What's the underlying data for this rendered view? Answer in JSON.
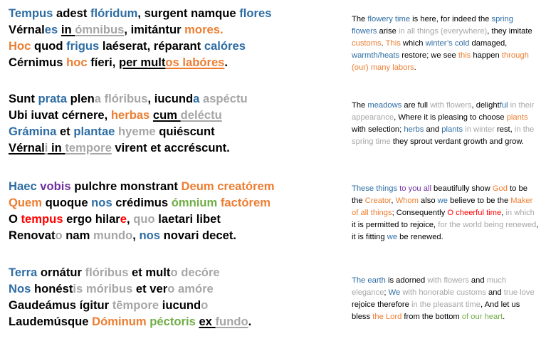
{
  "colors": {
    "blue": "#2E6DA4",
    "gray": "#A6A6A6",
    "orange": "#ED7D31",
    "purple": "#7030A0",
    "red": "#FF0000",
    "green": "#70AD47",
    "light_green": "#92D050",
    "black": "#000000"
  },
  "stanzas": [
    {
      "latin": [
        [
          {
            "t": "Tempus",
            "c": "blue"
          },
          {
            "t": " adest ",
            "c": "black"
          },
          {
            "t": "flóridum",
            "c": "blue"
          },
          {
            "t": ", surgent namque ",
            "c": "black"
          },
          {
            "t": "flores",
            "c": "blue"
          }
        ],
        [
          {
            "t": "Vérnal",
            "c": "black"
          },
          {
            "t": "es",
            "c": "blue"
          },
          {
            "t": " ",
            "c": "black"
          },
          {
            "t": "in",
            "c": "black",
            "u": true
          },
          {
            "t": " ",
            "c": "black",
            "u": true
          },
          {
            "t": "ómnibus",
            "c": "gray",
            "u": true
          },
          {
            "t": ", imitántur ",
            "c": "black"
          },
          {
            "t": "mores.",
            "c": "orange"
          }
        ],
        [
          {
            "t": "Hoc",
            "c": "orange"
          },
          {
            "t": " quod ",
            "c": "black"
          },
          {
            "t": "frigus",
            "c": "blue"
          },
          {
            "t": " laéserat, réparant ",
            "c": "black"
          },
          {
            "t": "calóres",
            "c": "blue"
          }
        ],
        [
          {
            "t": "Cérnimus ",
            "c": "black"
          },
          {
            "t": "hoc",
            "c": "orange"
          },
          {
            "t": " fíeri, ",
            "c": "black"
          },
          {
            "t": "per mult",
            "c": "black",
            "u": true
          },
          {
            "t": "os labóres",
            "c": "orange",
            "u": true
          },
          {
            "t": ".",
            "c": "black"
          }
        ]
      ],
      "translation": [
        {
          "t": "The ",
          "c": "black"
        },
        {
          "t": "flowery  time",
          "c": "blue"
        },
        {
          "t": " is here, for indeed the ",
          "c": "black"
        },
        {
          "t": "spring flowers",
          "c": "blue"
        },
        {
          "t": " arise ",
          "c": "black"
        },
        {
          "t": "in all things (everywhere)",
          "c": "gray"
        },
        {
          "t": ", they imitate ",
          "c": "black"
        },
        {
          "t": "customs",
          "c": "orange"
        },
        {
          "t": ". ",
          "c": "black"
        },
        {
          "t": "This",
          "c": "orange"
        },
        {
          "t": " which ",
          "c": "black"
        },
        {
          "t": "winter’s cold",
          "c": "blue"
        },
        {
          "t": " damaged, ",
          "c": "black"
        },
        {
          "t": "warmth/heats",
          "c": "blue"
        },
        {
          "t": " restore; we see ",
          "c": "black"
        },
        {
          "t": "this",
          "c": "orange"
        },
        {
          "t": " happen ",
          "c": "black"
        },
        {
          "t": "through (our) many labors",
          "c": "orange"
        },
        {
          "t": ".",
          "c": "black"
        }
      ]
    },
    {
      "latin": [
        [
          {
            "t": "Sunt ",
            "c": "black"
          },
          {
            "t": "prata",
            "c": "blue"
          },
          {
            "t": " plen",
            "c": "black"
          },
          {
            "t": "a",
            "c": "gray"
          },
          {
            "t": " ",
            "c": "black"
          },
          {
            "t": "flóribus",
            "c": "gray"
          },
          {
            "t": ", iucund",
            "c": "black"
          },
          {
            "t": "a",
            "c": "blue"
          },
          {
            "t": " ",
            "c": "black"
          },
          {
            "t": "aspéctu",
            "c": "gray"
          }
        ],
        [
          {
            "t": "Ubi iuvat cérnere, ",
            "c": "black"
          },
          {
            "t": "herbas",
            "c": "orange"
          },
          {
            "t": " ",
            "c": "black"
          },
          {
            "t": "cum",
            "c": "black",
            "u": true
          },
          {
            "t": " ",
            "c": "black",
            "u": true
          },
          {
            "t": "deléctu",
            "c": "gray",
            "u": true
          }
        ],
        [
          {
            "t": "Grámina",
            "c": "blue"
          },
          {
            "t": " et ",
            "c": "black"
          },
          {
            "t": "plantae",
            "c": "blue"
          },
          {
            "t": " ",
            "c": "black"
          },
          {
            "t": "hyeme",
            "c": "gray"
          },
          {
            "t": " quiéscunt",
            "c": "black"
          }
        ],
        [
          {
            "t": "Vérnal",
            "c": "black",
            "u": true
          },
          {
            "t": "i",
            "c": "gray",
            "u": true
          },
          {
            "t": " in",
            "c": "black",
            "u": true
          },
          {
            "t": " ",
            "c": "black",
            "u": true
          },
          {
            "t": "tempore",
            "c": "gray",
            "u": true
          },
          {
            "t": " virent et accréscunt.",
            "c": "black"
          }
        ]
      ],
      "translation": [
        {
          "t": " The ",
          "c": "black"
        },
        {
          "t": "meadows",
          "c": "blue"
        },
        {
          "t": " are full ",
          "c": "black"
        },
        {
          "t": "with flowers",
          "c": "gray"
        },
        {
          "t": ", delight",
          "c": "black"
        },
        {
          "t": "ful",
          "c": "blue"
        },
        {
          "t": " ",
          "c": "black"
        },
        {
          "t": "in their appearance",
          "c": "gray"
        },
        {
          "t": ", Where it is pleasing to choose ",
          "c": "black"
        },
        {
          "t": "plants",
          "c": "orange"
        },
        {
          "t": " with selection; ",
          "c": "black"
        },
        {
          "t": "herbs",
          "c": "blue"
        },
        {
          "t": " and ",
          "c": "black"
        },
        {
          "t": "plants",
          "c": "blue"
        },
        {
          "t": " ",
          "c": "black"
        },
        {
          "t": "in winter",
          "c": "gray"
        },
        {
          "t": " rest, ",
          "c": "black"
        },
        {
          "t": "in the spring time",
          "c": "gray"
        },
        {
          "t": " they sprout verdant growth and grow.",
          "c": "black"
        }
      ]
    },
    {
      "latin": [
        [
          {
            "t": "Haec",
            "c": "blue"
          },
          {
            "t": " ",
            "c": "black"
          },
          {
            "t": "vobis",
            "c": "purple"
          },
          {
            "t": " pulchre monstrant ",
            "c": "black"
          },
          {
            "t": "Deum creatórem",
            "c": "orange"
          }
        ],
        [
          {
            "t": "Quem",
            "c": "orange"
          },
          {
            "t": " quoque ",
            "c": "black"
          },
          {
            "t": "nos",
            "c": "blue"
          },
          {
            "t": " crédimus ",
            "c": "black"
          },
          {
            "t": "ómnium",
            "c": "green"
          },
          {
            "t": " ",
            "c": "black"
          },
          {
            "t": "factórem",
            "c": "orange"
          }
        ],
        [
          {
            "t": "O ",
            "c": "black"
          },
          {
            "t": "tempus",
            "c": "red"
          },
          {
            "t": " ergo hilar",
            "c": "black"
          },
          {
            "t": "e",
            "c": "red"
          },
          {
            "t": ", ",
            "c": "black"
          },
          {
            "t": "quo",
            "c": "gray"
          },
          {
            "t": " laetari libet",
            "c": "black"
          }
        ],
        [
          {
            "t": "Renovat",
            "c": "black"
          },
          {
            "t": "o",
            "c": "gray"
          },
          {
            "t": " nam ",
            "c": "black"
          },
          {
            "t": "mundo",
            "c": "gray"
          },
          {
            "t": ", ",
            "c": "black"
          },
          {
            "t": "nos",
            "c": "blue"
          },
          {
            "t": " novari decet.",
            "c": "black"
          }
        ]
      ],
      "translation": [
        {
          "t": "These things",
          "c": "blue"
        },
        {
          "t": " ",
          "c": "black"
        },
        {
          "t": "to you all",
          "c": "purple"
        },
        {
          "t": " beautifully show ",
          "c": "black"
        },
        {
          "t": "God",
          "c": "orange"
        },
        {
          "t": " to be the ",
          "c": "black"
        },
        {
          "t": "Creator",
          "c": "orange"
        },
        {
          "t": ", ",
          "c": "black"
        },
        {
          "t": "Whom",
          "c": "orange"
        },
        {
          "t": " also ",
          "c": "black"
        },
        {
          "t": "we",
          "c": "blue"
        },
        {
          "t": " believe to be the ",
          "c": "black"
        },
        {
          "t": "Maker of all things",
          "c": "orange"
        },
        {
          "t": "; Consequently ",
          "c": "black"
        },
        {
          "t": "O cheerful time",
          "c": "red"
        },
        {
          "t": ", ",
          "c": "black"
        },
        {
          "t": "in which",
          "c": "gray"
        },
        {
          "t": " it is permitted to rejoice, ",
          "c": "black"
        },
        {
          "t": "for the world being renewed",
          "c": "gray"
        },
        {
          "t": ", it is fitting ",
          "c": "black"
        },
        {
          "t": "we",
          "c": "blue"
        },
        {
          "t": " be renewed.",
          "c": "black"
        }
      ]
    },
    {
      "latin": [
        [
          {
            "t": "Terra",
            "c": "blue"
          },
          {
            "t": " ornátur ",
            "c": "black"
          },
          {
            "t": "flóribus",
            "c": "gray"
          },
          {
            "t": " et mult",
            "c": "black"
          },
          {
            "t": "o",
            "c": "gray"
          },
          {
            "t": " ",
            "c": "black"
          },
          {
            "t": "decóre",
            "c": "gray"
          }
        ],
        [
          {
            "t": "Nos",
            "c": "blue"
          },
          {
            "t": " honést",
            "c": "black"
          },
          {
            "t": "is",
            "c": "gray"
          },
          {
            "t": " ",
            "c": "black"
          },
          {
            "t": "móribus",
            "c": "gray"
          },
          {
            "t": " et ver",
            "c": "black"
          },
          {
            "t": "o",
            "c": "gray"
          },
          {
            "t": " ",
            "c": "black"
          },
          {
            "t": "amóre",
            "c": "gray"
          }
        ],
        [
          {
            "t": "Gaudeámus ígitur ",
            "c": "black"
          },
          {
            "t": "tēmpore",
            "c": "gray"
          },
          {
            "t": " iucund",
            "c": "black"
          },
          {
            "t": "o",
            "c": "gray"
          }
        ],
        [
          {
            "t": "Laudemúsque ",
            "c": "black"
          },
          {
            "t": "Dóminum",
            "c": "orange"
          },
          {
            "t": " ",
            "c": "black"
          },
          {
            "t": "péctoris",
            "c": "green"
          },
          {
            "t": " ",
            "c": "black"
          },
          {
            "t": "ex",
            "c": "black",
            "u": true
          },
          {
            "t": " ",
            "c": "black",
            "u": true
          },
          {
            "t": "fundo",
            "c": "gray",
            "u": true
          },
          {
            "t": ".",
            "c": "black"
          }
        ]
      ],
      "translation": [
        {
          "t": "The earth",
          "c": "blue"
        },
        {
          "t": " is adorned ",
          "c": "black"
        },
        {
          "t": "with flowers",
          "c": "gray"
        },
        {
          "t": " and ",
          "c": "black"
        },
        {
          "t": "much elegance",
          "c": "gray"
        },
        {
          "t": "; ",
          "c": "black"
        },
        {
          "t": "We",
          "c": "blue"
        },
        {
          "t": " ",
          "c": "black"
        },
        {
          "t": "with honorable customs",
          "c": "gray"
        },
        {
          "t": " and ",
          "c": "black"
        },
        {
          "t": "true love",
          "c": "gray"
        },
        {
          "t": " rejoice therefore ",
          "c": "black"
        },
        {
          "t": "in the pleasant time",
          "c": "gray"
        },
        {
          "t": ", And let us bless ",
          "c": "black"
        },
        {
          "t": "the Lord",
          "c": "orange"
        },
        {
          "t": " from the bottom ",
          "c": "black"
        },
        {
          "t": "of our heart",
          "c": "green"
        },
        {
          "t": ".",
          "c": "black"
        }
      ]
    }
  ]
}
